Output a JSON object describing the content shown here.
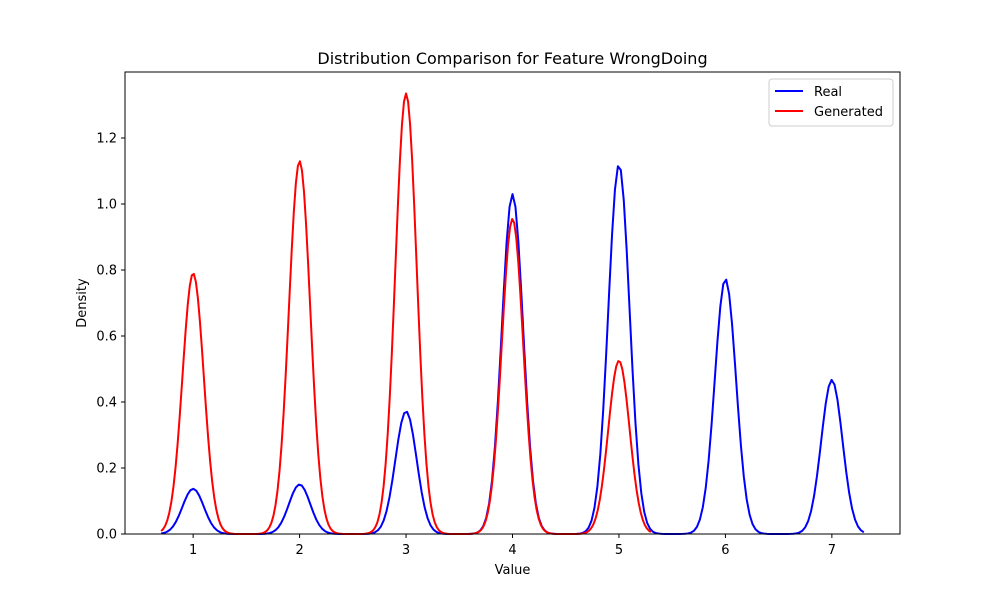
{
  "chart_data": {
    "type": "line",
    "title": "Distribution Comparison for Feature WrongDoing",
    "xlabel": "Value",
    "ylabel": "Density",
    "xlim": [
      0.36,
      7.64
    ],
    "ylim": [
      0,
      1.4
    ],
    "xticks": [
      1,
      2,
      3,
      4,
      5,
      6,
      7
    ],
    "yticks": [
      0.0,
      0.2,
      0.4,
      0.6,
      0.8,
      1.0,
      1.2
    ],
    "ytick_labels": [
      "0.0",
      "0.2",
      "0.4",
      "0.6",
      "0.8",
      "1.0",
      "1.2"
    ],
    "grid": false,
    "legend_position": "top-right",
    "series": [
      {
        "name": "Real",
        "color": "#0000ff",
        "x_range": [
          0.7,
          7.3
        ],
        "peaks": [
          {
            "center": 1,
            "height": 0.137,
            "width": 0.1
          },
          {
            "center": 2,
            "height": 0.15,
            "width": 0.1
          },
          {
            "center": 3,
            "height": 0.372,
            "width": 0.1
          },
          {
            "center": 4,
            "height": 1.03,
            "width": 0.1
          },
          {
            "center": 5,
            "height": 1.12,
            "width": 0.1
          },
          {
            "center": 6,
            "height": 0.773,
            "width": 0.1
          },
          {
            "center": 7,
            "height": 0.467,
            "width": 0.1
          }
        ]
      },
      {
        "name": "Generated",
        "color": "#ff0000",
        "x_range": [
          0.7,
          5.3
        ],
        "peaks": [
          {
            "center": 1,
            "height": 0.79,
            "width": 0.1
          },
          {
            "center": 2,
            "height": 1.13,
            "width": 0.1
          },
          {
            "center": 3,
            "height": 1.335,
            "width": 0.1
          },
          {
            "center": 4,
            "height": 0.955,
            "width": 0.1
          },
          {
            "center": 5,
            "height": 0.525,
            "width": 0.1
          }
        ]
      }
    ]
  }
}
